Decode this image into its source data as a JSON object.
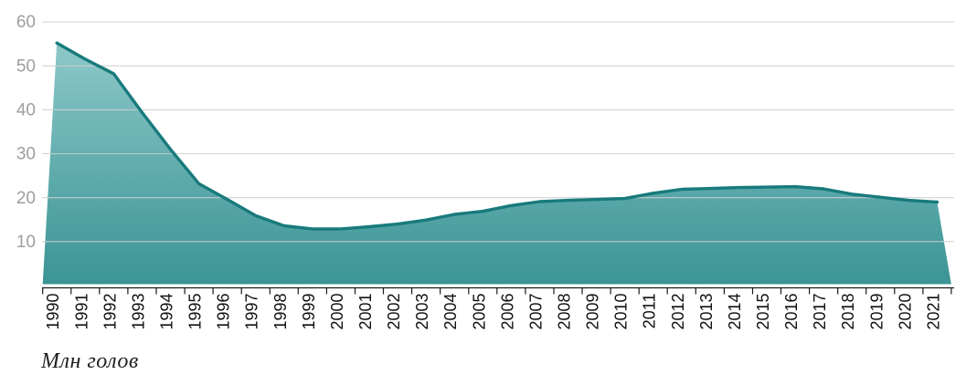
{
  "chart_data": {
    "type": "area",
    "title": "",
    "caption": "Млн голов",
    "x": [
      "1990",
      "1991",
      "1992",
      "1993",
      "1994",
      "1995",
      "1996",
      "1997",
      "1998",
      "1999",
      "2000",
      "2001",
      "2002",
      "2003",
      "2004",
      "2005",
      "2006",
      "2007",
      "2008",
      "2009",
      "2010",
      "2011",
      "2012",
      "2013",
      "2014",
      "2015",
      "2016",
      "2017",
      "2018",
      "2019",
      "2020",
      "2021"
    ],
    "values": [
      55.2,
      51.5,
      48.2,
      39.4,
      31.0,
      23.2,
      19.6,
      15.9,
      13.6,
      12.9,
      12.9,
      13.4,
      14.0,
      14.9,
      16.2,
      16.9,
      18.2,
      19.1,
      19.4,
      19.6,
      19.8,
      21.0,
      21.9,
      22.1,
      22.3,
      22.4,
      22.5,
      22.0,
      20.8,
      20.1,
      19.4,
      19.0
    ],
    "ylabel": "",
    "xlabel": "",
    "ylim": [
      0,
      60
    ],
    "yticks": [
      10,
      20,
      30,
      40,
      50,
      60
    ],
    "grid": "horizontal",
    "legend": "none",
    "colors": {
      "line": "#187a7c",
      "fill_top": "#8ec8c9",
      "fill_mid": "#5fabac",
      "fill_bottom": "#3b9495",
      "gridline": "#cfcfcf",
      "axis": "#1a1a1a",
      "xlabel_color": "#111111",
      "ylabel_color": "#9e9e9e"
    }
  }
}
